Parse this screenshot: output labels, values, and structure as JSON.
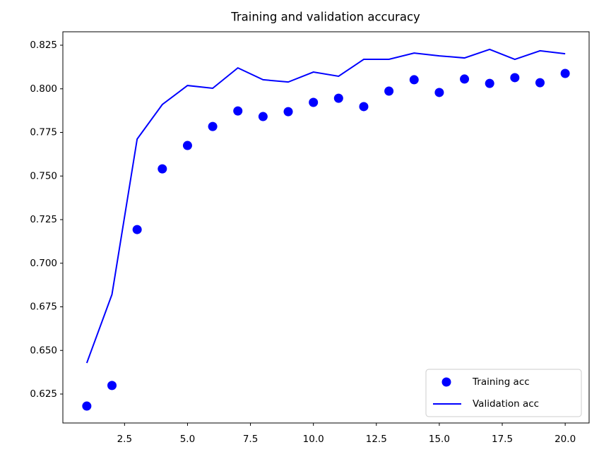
{
  "chart_data": {
    "type": "line",
    "title": "Training and validation accuracy",
    "x": [
      1,
      2,
      3,
      4,
      5,
      6,
      7,
      8,
      9,
      10,
      11,
      12,
      13,
      14,
      15,
      16,
      17,
      18,
      19,
      20
    ],
    "series": [
      {
        "name": "Training acc",
        "color": "#0000ff",
        "style": "markers",
        "values": [
          0.6181,
          0.6299,
          0.7193,
          0.7541,
          0.7675,
          0.7784,
          0.7873,
          0.7841,
          0.7869,
          0.7922,
          0.7946,
          0.7898,
          0.7987,
          0.8052,
          0.7979,
          0.8056,
          0.8031,
          0.8064,
          0.8035,
          0.8088
        ]
      },
      {
        "name": "Validation acc",
        "color": "#0000ff",
        "style": "line",
        "values": [
          0.6428,
          0.6821,
          0.7712,
          0.791,
          0.8019,
          0.8003,
          0.812,
          0.8052,
          0.8039,
          0.8096,
          0.8072,
          0.8169,
          0.8169,
          0.8205,
          0.8189,
          0.8177,
          0.8226,
          0.8169,
          0.8218,
          0.8201
        ]
      }
    ],
    "xlim": [
      0.05,
      20.95
    ],
    "ylim": [
      0.6084,
      0.8327
    ],
    "xticks": [
      2.5,
      {
        "value": 5,
        "label": "5.0"
      },
      7.5,
      {
        "value": 10,
        "label": "10.0"
      },
      12.5,
      {
        "value": 15,
        "label": "15.0"
      },
      17.5,
      {
        "value": 20,
        "label": "20.0"
      }
    ],
    "yticks": [
      0.625,
      {
        "value": 0.65,
        "label": "0.650"
      },
      0.675,
      {
        "value": 0.7,
        "label": "0.700"
      },
      0.725,
      {
        "value": 0.75,
        "label": "0.750"
      },
      0.775,
      {
        "value": 0.8,
        "label": "0.800"
      },
      0.825
    ],
    "legend": "lower right"
  }
}
